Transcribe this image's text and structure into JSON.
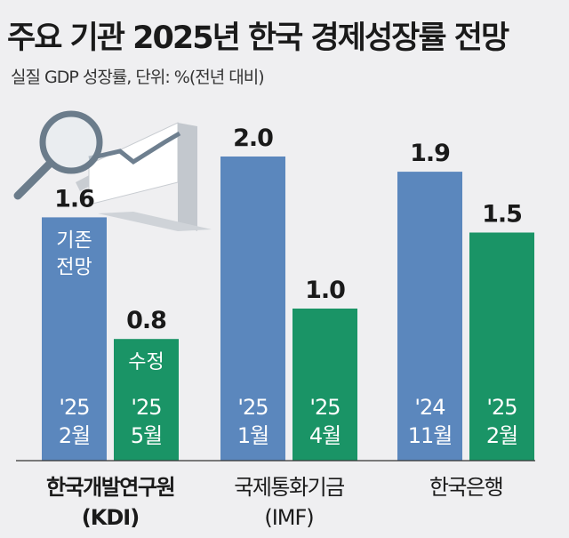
{
  "title": "주요 기관 2025년 한국 경제성장률 전망",
  "subtitle": "실질 GDP 성장률, 단위: %(전년 대비)",
  "colors": {
    "original": "#5b87bd",
    "revised": "#1a9466",
    "background": "#efeff1"
  },
  "illustration": "magnifier-over-chart-icon",
  "chart_data": {
    "type": "bar",
    "ylabel": "실질 GDP 성장률 (%)",
    "ylim": [
      0,
      2.0
    ],
    "grid": false,
    "legend": "none",
    "groups": [
      {
        "name": "한국개발연구원",
        "name2": "(KDI)",
        "bold": true,
        "bars": [
          {
            "value": 1.6,
            "label": "1.6",
            "date1": "'25",
            "date2": "2월",
            "inner1": "기존",
            "inner2": "전망",
            "kind": "original"
          },
          {
            "value": 0.8,
            "label": "0.8",
            "date1": "'25",
            "date2": "5월",
            "inner1": "수정",
            "inner2": "",
            "kind": "revised"
          }
        ]
      },
      {
        "name": "국제통화기금",
        "name2": "(IMF)",
        "bold": false,
        "bars": [
          {
            "value": 2.0,
            "label": "2.0",
            "date1": "'25",
            "date2": "1월",
            "kind": "original"
          },
          {
            "value": 1.0,
            "label": "1.0",
            "date1": "'25",
            "date2": "4월",
            "kind": "revised"
          }
        ]
      },
      {
        "name": "한국은행",
        "name2": "",
        "bold": false,
        "bars": [
          {
            "value": 1.9,
            "label": "1.9",
            "date1": "'24",
            "date2": "11월",
            "kind": "original"
          },
          {
            "value": 1.5,
            "label": "1.5",
            "date1": "'25",
            "date2": "2월",
            "kind": "revised"
          }
        ]
      }
    ]
  }
}
